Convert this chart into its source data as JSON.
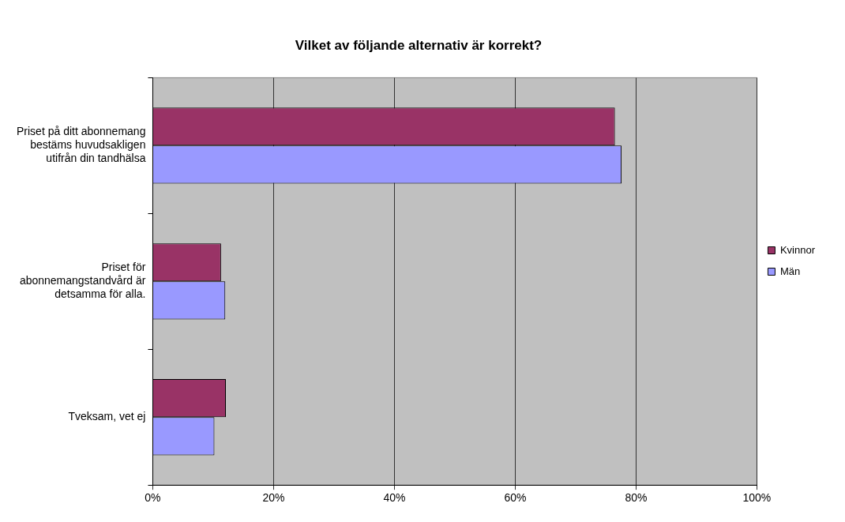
{
  "chart_data": {
    "type": "bar",
    "orientation": "horizontal",
    "title": "Vilket av följande alternativ är korrekt?",
    "categories": [
      "Priset på ditt abonnemang bestäms huvudsakligen utifrån din tandhälsa",
      "Priset för abonnemangstandvård är detsamma för alla.",
      "Tveksam, vet ej"
    ],
    "series": [
      {
        "name": "Kvinnor",
        "color": "#993366",
        "values": [
          76.5,
          11.3,
          12.1
        ]
      },
      {
        "name": "Män",
        "color": "#9999ff",
        "values": [
          77.6,
          12.0,
          10.2
        ]
      }
    ],
    "xlim": [
      0,
      100
    ],
    "xticks": [
      {
        "value": 0,
        "label": "0%"
      },
      {
        "value": 20,
        "label": "20%"
      },
      {
        "value": 40,
        "label": "40%"
      },
      {
        "value": 60,
        "label": "60%"
      },
      {
        "value": 80,
        "label": "80%"
      },
      {
        "value": 100,
        "label": "100%"
      }
    ],
    "grid": "x",
    "legend": "right"
  }
}
